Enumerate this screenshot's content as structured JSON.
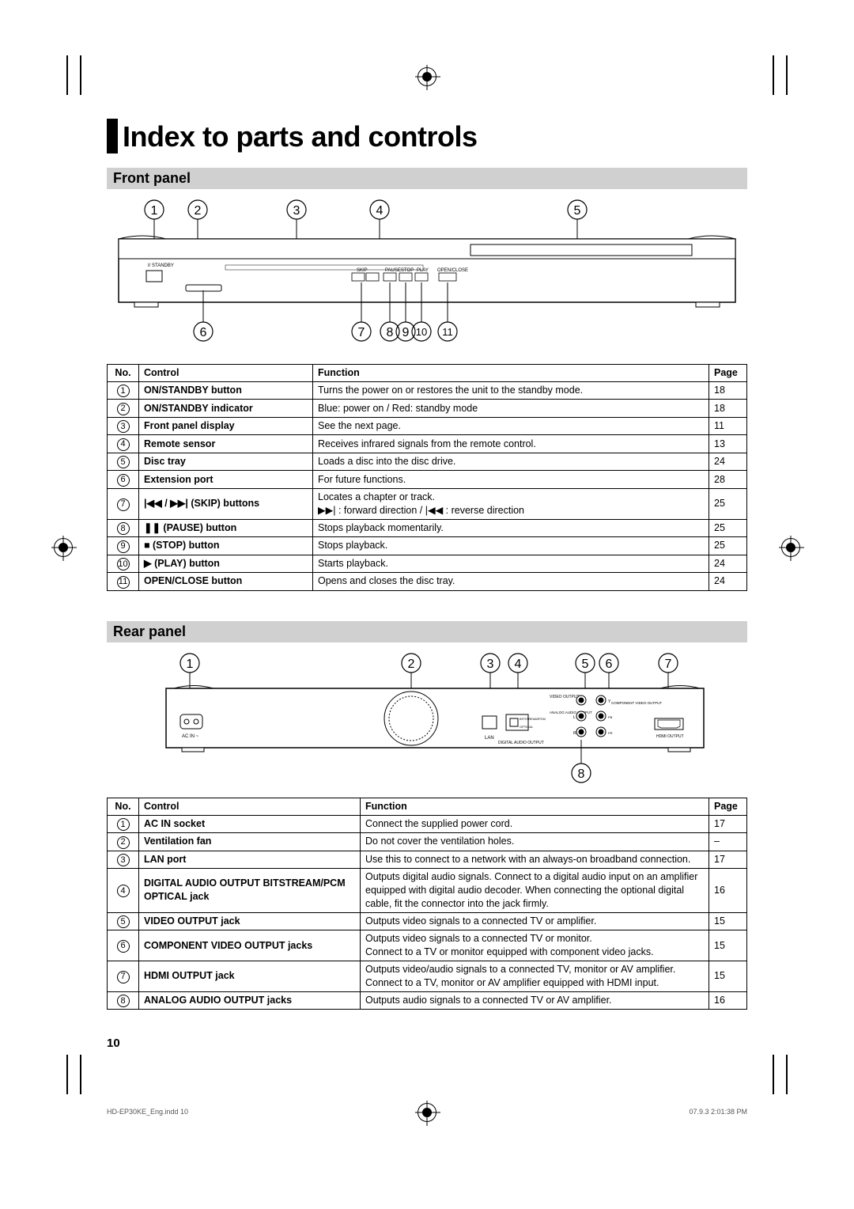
{
  "title": "Index to parts and controls",
  "sections": {
    "front": {
      "heading": "Front panel",
      "callouts_top": [
        "1",
        "2",
        "3",
        "4",
        "5"
      ],
      "callouts_bottom": [
        "6",
        "7",
        "8",
        "9",
        "10",
        "11"
      ],
      "diagram_labels": {
        "standby": "I/  STANDBY",
        "skip": "SKIP",
        "pause": "PAUSE",
        "stop": "STOP",
        "play": "PLAY",
        "open": "OPEN/CLOSE"
      },
      "table": {
        "headers": {
          "no": "No.",
          "control": "Control",
          "function": "Function",
          "page": "Page"
        },
        "rows": [
          {
            "no": "1",
            "control": "ON/STANDBY button",
            "function": "Turns the power on or restores the unit to the standby mode.",
            "page": "18"
          },
          {
            "no": "2",
            "control": "ON/STANDBY indicator",
            "function": "Blue: power on / Red: standby mode",
            "page": "18"
          },
          {
            "no": "3",
            "control": "Front panel display",
            "function": "See the next page.",
            "page": "11"
          },
          {
            "no": "4",
            "control": "Remote sensor",
            "function": "Receives infrared signals from the remote control.",
            "page": "13"
          },
          {
            "no": "5",
            "control": "Disc tray",
            "function": "Loads a disc into the disc drive.",
            "page": "24"
          },
          {
            "no": "6",
            "control": "Extension port",
            "function": "For future functions.",
            "page": "28"
          },
          {
            "no": "7",
            "control": "|◀◀ / ▶▶| (SKIP) buttons",
            "function": "Locates a chapter or track.\n▶▶| : forward direction / |◀◀ : reverse direction",
            "page": "25"
          },
          {
            "no": "8",
            "control": "❚❚ (PAUSE) button",
            "function": "Stops playback momentarily.",
            "page": "25"
          },
          {
            "no": "9",
            "control": "■ (STOP) button",
            "function": "Stops playback.",
            "page": "25"
          },
          {
            "no": "10",
            "control": "▶ (PLAY) button",
            "function": "Starts playback.",
            "page": "24"
          },
          {
            "no": "11",
            "control": "OPEN/CLOSE button",
            "function": "Opens and closes the disc tray.",
            "page": "24"
          }
        ]
      }
    },
    "rear": {
      "heading": "Rear panel",
      "callouts_top": [
        "1",
        "2",
        "3",
        "4",
        "5",
        "6",
        "7"
      ],
      "callouts_bottom": [
        "8"
      ],
      "diagram_labels": {
        "acin": "AC IN ~",
        "video_out": "VIDEO OUTPUT",
        "analog": "ANALOG AUDIO OUTPUT",
        "component": "COMPONENT VIDEO OUTPUT",
        "lan": "LAN",
        "digital": "DIGITAL AUDIO OUTPUT",
        "bitstream": "BITSTREAM/PCM",
        "optical": "OPTICAL",
        "hdmi": "HDMI OUTPUT"
      },
      "table": {
        "headers": {
          "no": "No.",
          "control": "Control",
          "function": "Function",
          "page": "Page"
        },
        "rows": [
          {
            "no": "1",
            "control": "AC IN socket",
            "function": "Connect the supplied power cord.",
            "page": "17"
          },
          {
            "no": "2",
            "control": "Ventilation fan",
            "function": "Do not cover the ventilation holes.",
            "page": "–"
          },
          {
            "no": "3",
            "control": "LAN port",
            "function": "Use this to connect to a network with an always-on broadband connection.",
            "page": "17"
          },
          {
            "no": "4",
            "control": "DIGITAL AUDIO OUTPUT BITSTREAM/PCM OPTICAL jack",
            "function": "Outputs digital audio signals. Connect to a digital audio input on an amplifier equipped with digital audio decoder. When connecting the optional digital cable, fit the connector into the jack firmly.",
            "page": "16"
          },
          {
            "no": "5",
            "control": "VIDEO OUTPUT jack",
            "function": "Outputs video signals to a connected TV or amplifier.",
            "page": "15"
          },
          {
            "no": "6",
            "control": "COMPONENT VIDEO OUTPUT jacks",
            "function": "Outputs video signals to a connected TV or monitor.\nConnect to a TV or monitor equipped with component video jacks.",
            "page": "15"
          },
          {
            "no": "7",
            "control": "HDMI OUTPUT jack",
            "function": "Outputs video/audio signals to a connected TV, monitor or AV amplifier.\nConnect to a TV, monitor or AV amplifier equipped with HDMI input.",
            "page": "15"
          },
          {
            "no": "8",
            "control": "ANALOG AUDIO OUTPUT jacks",
            "function": "Outputs audio signals to a connected TV or AV amplifier.",
            "page": "16"
          }
        ]
      }
    }
  },
  "page_number": "10",
  "footer": {
    "left": "HD-EP30KE_Eng.indd   10",
    "right": "07.9.3   2:01:38 PM"
  },
  "colors": {
    "section_bg": "#d0d0d0",
    "text": "#000000",
    "bg": "#ffffff"
  }
}
